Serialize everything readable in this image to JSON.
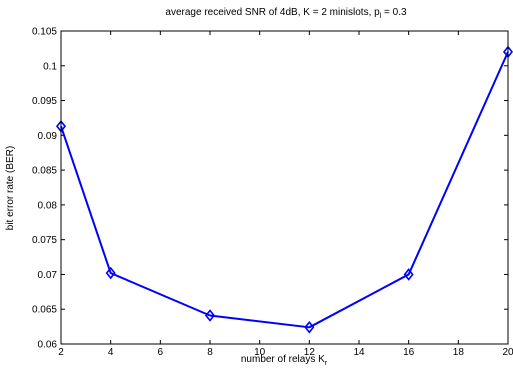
{
  "chart_data": {
    "type": "line",
    "title_main": "average received SNR of 4dB, K = 2 minislots, p",
    "title_sub": "l",
    "title_tail": " = 0.3",
    "xlabel_main": "number of relays K",
    "xlabel_sub": "r",
    "ylabel": "bit error rate (BER)",
    "xlim": [
      2,
      20
    ],
    "ylim": [
      0.06,
      0.105
    ],
    "xticks": [
      2,
      4,
      6,
      8,
      10,
      12,
      14,
      16,
      18,
      20
    ],
    "xtick_labels": [
      "2",
      "4",
      "6",
      "8",
      "10",
      "12",
      "14",
      "16",
      "18",
      "20"
    ],
    "yticks": [
      0.06,
      0.065,
      0.07,
      0.075,
      0.08,
      0.085,
      0.09,
      0.095,
      0.1,
      0.105
    ],
    "ytick_labels": [
      "0.06",
      "0.065",
      "0.07",
      "0.075",
      "0.08",
      "0.085",
      "0.09",
      "0.095",
      "0.1",
      "0.105"
    ],
    "grid": false,
    "series": [
      {
        "x": [
          2,
          4,
          8,
          12,
          16,
          20
        ],
        "values": [
          0.0913,
          0.0702,
          0.0641,
          0.0624,
          0.07,
          0.102
        ],
        "marker": "diamond",
        "color": "#0000ff"
      }
    ]
  }
}
